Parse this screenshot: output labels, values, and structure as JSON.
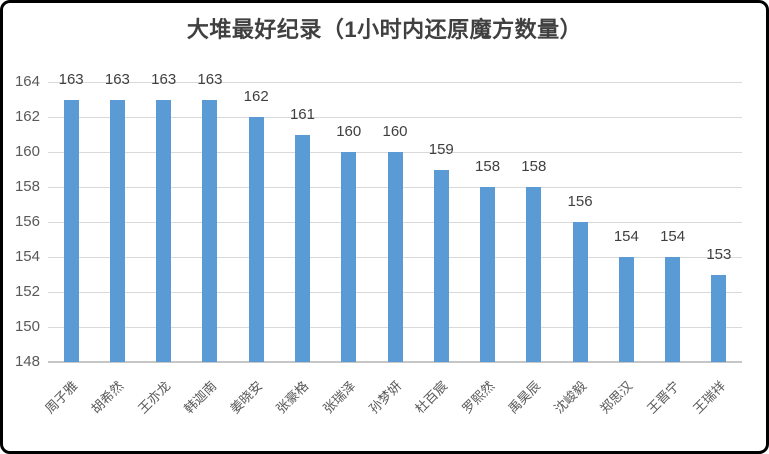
{
  "chart_data": {
    "type": "bar",
    "title": "大堆最好纪录（1小时内还原魔方数量）",
    "categories": [
      "周子雅",
      "胡希然",
      "王亦龙",
      "韩迦南",
      "姜晓安",
      "张豪格",
      "张瑞泽",
      "孙梦妍",
      "杜百宸",
      "罗熙然",
      "禹昊辰",
      "沈峻毅",
      "郑思汉",
      "王晋宁",
      "王瑞祥"
    ],
    "values": [
      163,
      163,
      163,
      163,
      162,
      161,
      160,
      160,
      159,
      158,
      158,
      156,
      154,
      154,
      153
    ],
    "xlabel": "",
    "ylabel": "",
    "ylim": [
      148,
      164
    ],
    "yticks": [
      148,
      150,
      152,
      154,
      156,
      158,
      160,
      162,
      164
    ],
    "grid": true,
    "legend": "none",
    "data_labels": true,
    "colors": {
      "bar": "#5B9BD5",
      "gridline": "#D9D9D9",
      "axis_line": "#C6C6C6",
      "title_text": "#404040",
      "value_label_text": "#404040",
      "tick_label_text": "#595959",
      "category_label_text": "#595959",
      "frame_border": "#000000",
      "background": "#FFFFFF"
    }
  }
}
